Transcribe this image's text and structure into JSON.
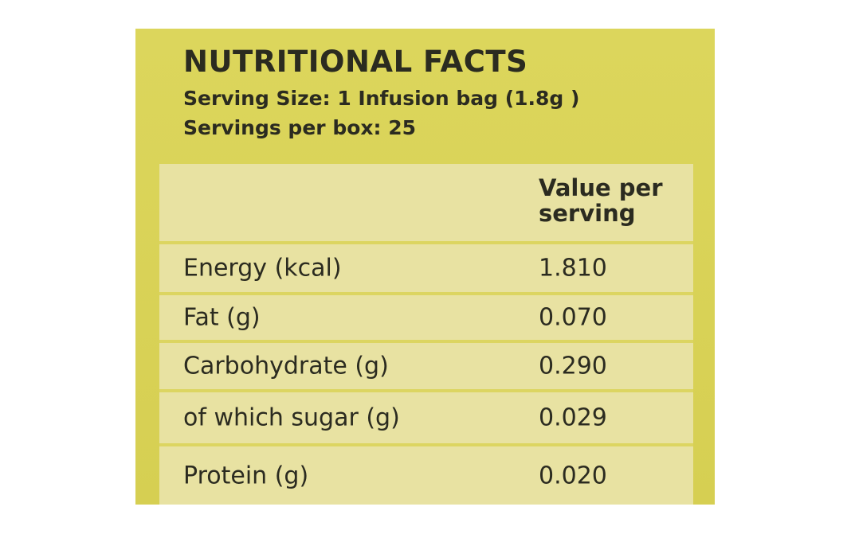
{
  "label": {
    "title": "NUTRITIONAL FACTS",
    "serving_size": "Serving Size: 1 Infusion bag (1.8g )",
    "servings_per_box": "Servings per box: 25"
  },
  "table": {
    "header_value": "Value per serving",
    "rows": [
      {
        "name": "Energy (kcal)",
        "value": "1.810"
      },
      {
        "name": "Fat (g)",
        "value": "0.070"
      },
      {
        "name": "Carbohydrate (g)",
        "value": "0.290"
      },
      {
        "name": "of which sugar (g)",
        "value": "0.029"
      },
      {
        "name": "Protein (g)",
        "value": "0.020"
      }
    ]
  },
  "colors": {
    "panel_yellow": "#d9d35a",
    "table_cream": "#e8e2a2",
    "text_dark": "#2b2b20"
  }
}
